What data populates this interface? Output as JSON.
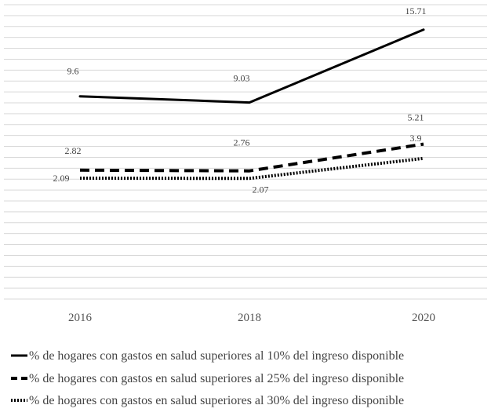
{
  "chart_data": {
    "type": "line",
    "categories": [
      "2016",
      "2018",
      "2020"
    ],
    "series": [
      {
        "name": "% de hogares con gastos en salud superiores al 10% del ingreso disponible",
        "values": [
          9.6,
          9.03,
          15.71
        ],
        "labels": [
          "9.6",
          "9.03",
          "15.71"
        ],
        "style": "solid"
      },
      {
        "name": "% de hogares con gastos en salud superiores al 25% del ingreso disponible",
        "values": [
          2.82,
          2.76,
          5.21
        ],
        "labels": [
          "2.82",
          "2.76",
          "5.21"
        ],
        "style": "dashed"
      },
      {
        "name": "% de hogares con gastos en salud superiores al 30% del ingreso disponible",
        "values": [
          2.09,
          2.07,
          3.9
        ],
        "labels": [
          "2.09",
          "2.07",
          "3.9"
        ],
        "style": "dotted"
      }
    ],
    "ylim": [
      -9.0,
      18.0
    ],
    "grid": true,
    "legend": "bottom",
    "line_color": "#000000"
  }
}
